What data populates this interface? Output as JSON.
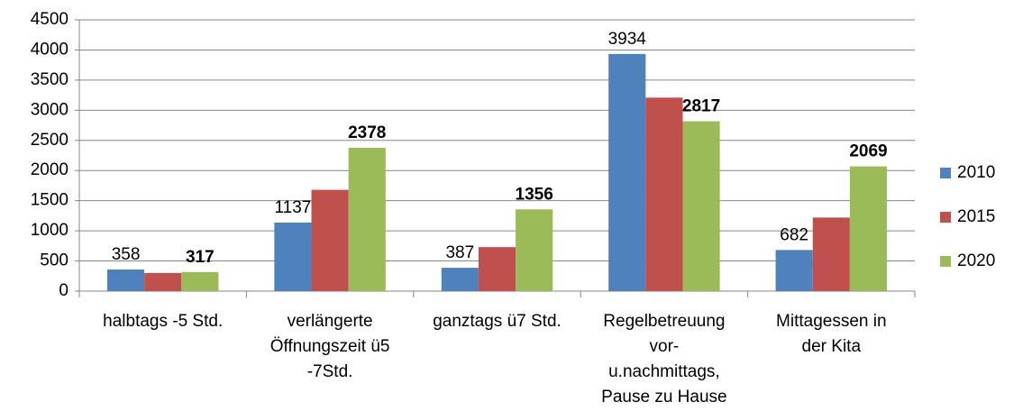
{
  "chart_data": {
    "type": "bar",
    "categories": [
      "halbtags -5 Std.",
      "verlängerte\nÖffnungszeit ü5\n-7Std.",
      "ganztags ü7 Std.",
      "Regelbetreuung\nvor-\nu.nachmittags,\nPause zu Hause",
      "Mittagessen in\nder Kita"
    ],
    "series": [
      {
        "name": "2010",
        "color": "#4f81bd",
        "values": [
          358,
          1137,
          387,
          3934,
          682
        ],
        "show_labels": true,
        "label_bold": false
      },
      {
        "name": "2015",
        "color": "#c0504d",
        "values": [
          300,
          1680,
          730,
          3210,
          1220
        ],
        "show_labels": false,
        "label_bold": false
      },
      {
        "name": "2020",
        "color": "#9bbb59",
        "values": [
          317,
          2378,
          1356,
          2817,
          2069
        ],
        "show_labels": true,
        "label_bold": true
      }
    ],
    "ylim": [
      0,
      4500
    ],
    "yticks": [
      0,
      500,
      1000,
      1500,
      2000,
      2500,
      3000,
      3500,
      4000,
      4500
    ],
    "grid": true,
    "legend": "right"
  }
}
